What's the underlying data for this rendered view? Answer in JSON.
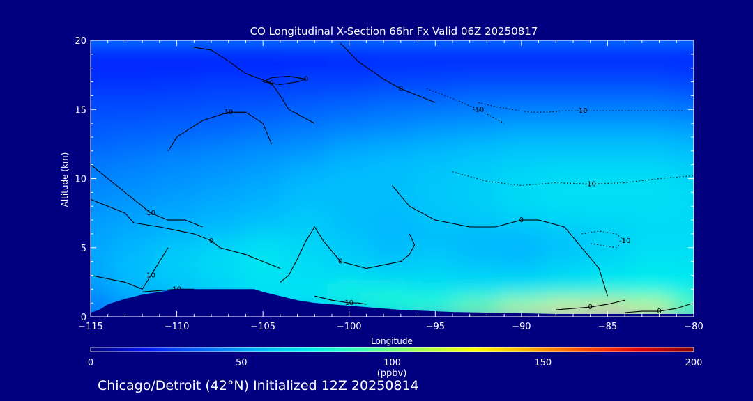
{
  "chart_data": {
    "type": "heatmap",
    "title": "CO Longitudinal X-Section 66hr  Fx Valid 06Z 20250817",
    "xlabel": "Longitude",
    "ylabel": "Altitude (km)",
    "xlim": [
      -115,
      -80
    ],
    "ylim": [
      0,
      20
    ],
    "x_ticks": [
      "−115",
      "−110",
      "−105",
      "−100",
      "−95",
      "−90",
      "−85",
      "−80"
    ],
    "x_tick_values": [
      -115,
      -110,
      -105,
      -100,
      -95,
      -90,
      -85,
      -80
    ],
    "y_ticks": [
      "0",
      "5",
      "10",
      "15",
      "20"
    ],
    "y_tick_values": [
      0,
      5,
      10,
      15,
      20
    ],
    "x": [
      -115,
      -112.5,
      -110,
      -107.5,
      -105,
      -102.5,
      -100,
      -97.5,
      -95,
      -92.5,
      -90,
      -87.5,
      -85,
      -82.5,
      -80
    ],
    "y": [
      0.5,
      1.5,
      2.5,
      3.5,
      4.5,
      5.5,
      6.5,
      7.5,
      8.5,
      9.5,
      10.5,
      11.5,
      12.5,
      13.5,
      14.5,
      15.5,
      16.5,
      17.5,
      18.5,
      19.5
    ],
    "z": [
      [
        40,
        48,
        50,
        52,
        55,
        60,
        65,
        80,
        90,
        105,
        120,
        130,
        135,
        125,
        100
      ],
      [
        45,
        52,
        58,
        62,
        70,
        72,
        80,
        80,
        75,
        75,
        78,
        82,
        85,
        84,
        78
      ],
      [
        50,
        56,
        60,
        64,
        68,
        66,
        70,
        68,
        66,
        65,
        66,
        68,
        70,
        72,
        70
      ],
      [
        52,
        58,
        62,
        66,
        70,
        68,
        64,
        62,
        64,
        62,
        60,
        64,
        68,
        70,
        70
      ],
      [
        52,
        56,
        62,
        66,
        70,
        66,
        62,
        58,
        60,
        56,
        55,
        60,
        64,
        68,
        68
      ],
      [
        50,
        54,
        58,
        62,
        66,
        64,
        60,
        56,
        58,
        56,
        55,
        58,
        62,
        66,
        66
      ],
      [
        50,
        52,
        54,
        56,
        60,
        62,
        58,
        55,
        58,
        58,
        60,
        62,
        64,
        66,
        66
      ],
      [
        48,
        50,
        52,
        54,
        56,
        60,
        58,
        56,
        60,
        62,
        64,
        66,
        66,
        66,
        66
      ],
      [
        46,
        48,
        50,
        52,
        54,
        58,
        58,
        58,
        60,
        62,
        66,
        68,
        68,
        68,
        66
      ],
      [
        44,
        46,
        48,
        50,
        52,
        56,
        58,
        58,
        60,
        62,
        66,
        68,
        68,
        68,
        66
      ],
      [
        42,
        44,
        46,
        48,
        50,
        54,
        56,
        58,
        60,
        62,
        64,
        66,
        66,
        66,
        64
      ],
      [
        40,
        42,
        44,
        46,
        48,
        50,
        54,
        56,
        58,
        60,
        62,
        62,
        62,
        62,
        60
      ],
      [
        36,
        38,
        40,
        42,
        44,
        46,
        50,
        52,
        54,
        56,
        58,
        58,
        58,
        58,
        56
      ],
      [
        34,
        36,
        36,
        38,
        40,
        42,
        44,
        46,
        48,
        50,
        52,
        52,
        52,
        52,
        50
      ],
      [
        32,
        32,
        34,
        34,
        36,
        38,
        40,
        42,
        44,
        44,
        46,
        46,
        46,
        46,
        44
      ],
      [
        30,
        30,
        30,
        32,
        32,
        34,
        36,
        38,
        38,
        40,
        40,
        40,
        40,
        40,
        38
      ],
      [
        26,
        26,
        27,
        28,
        28,
        30,
        30,
        32,
        32,
        34,
        34,
        34,
        34,
        34,
        32
      ],
      [
        24,
        24,
        24,
        25,
        25,
        26,
        26,
        27,
        28,
        28,
        28,
        28,
        28,
        28,
        27
      ],
      [
        22,
        22,
        22,
        22,
        22,
        23,
        23,
        24,
        24,
        24,
        24,
        24,
        24,
        24,
        23
      ],
      [
        21,
        21,
        21,
        21,
        21,
        21,
        22,
        22,
        22,
        22,
        22,
        22,
        22,
        22,
        22
      ]
    ],
    "terrain": {
      "x": [
        -115,
        -114.5,
        -114,
        -113,
        -112,
        -111,
        -110,
        -109,
        -108,
        -107,
        -106,
        -105.5,
        -105,
        -104,
        -103,
        -102,
        -101,
        -100,
        -99,
        -98,
        -97,
        -96,
        -95,
        -94,
        -92,
        -90,
        -88,
        -86,
        -84,
        -82,
        -80
      ],
      "elev_km": [
        0.3,
        0.5,
        0.9,
        1.3,
        1.6,
        1.8,
        2.0,
        2.0,
        2.0,
        2.0,
        2.0,
        2.0,
        1.8,
        1.5,
        1.2,
        1.0,
        0.9,
        0.8,
        0.7,
        0.6,
        0.5,
        0.45,
        0.4,
        0.35,
        0.3,
        0.25,
        0.2,
        0.2,
        0.2,
        0.2,
        0.2
      ]
    },
    "contours": [
      {
        "label": "0",
        "x": [
          -109,
          -108,
          -107,
          -106,
          -104.5,
          -104,
          -103.5,
          -102
        ],
        "y": [
          19.5,
          19.3,
          18.5,
          17.6,
          16.9,
          16.0,
          15.0,
          14.0
        ]
      },
      {
        "label": "0",
        "x": [
          -100.5,
          -99.5,
          -98,
          -97,
          -96,
          -95
        ],
        "y": [
          19.8,
          18.5,
          17.2,
          16.5,
          16.0,
          15.5
        ]
      },
      {
        "label": "0",
        "x": [
          -105,
          -104,
          -103,
          -102.5,
          -103.5,
          -104.5,
          -105
        ],
        "y": [
          17.0,
          16.8,
          17.0,
          17.2,
          17.4,
          17.3,
          17.0
        ]
      },
      {
        "label": "0",
        "x": [
          -115,
          -113,
          -112.5,
          -111,
          -109,
          -108,
          -107.5,
          -106,
          -105,
          -104
        ],
        "y": [
          8.5,
          7.5,
          6.8,
          6.5,
          6.0,
          5.5,
          5.0,
          4.5,
          4.0,
          3.5
        ]
      },
      {
        "label": "0",
        "x": [
          -104,
          -103.5,
          -103,
          -102.5,
          -102,
          -101.5,
          -100.5,
          -99,
          -97,
          -96.5,
          -96.2,
          -96.5
        ],
        "y": [
          2.5,
          3.0,
          4.2,
          5.5,
          6.5,
          5.5,
          4.0,
          3.5,
          4.0,
          4.5,
          5.2,
          6.0
        ]
      },
      {
        "label": "0",
        "x": [
          -97.5,
          -96.5,
          -95,
          -93,
          -91.5,
          -90,
          -89,
          -87.5,
          -86.5,
          -85.5,
          -85
        ],
        "y": [
          9.5,
          8.0,
          7.0,
          6.5,
          6.5,
          7.0,
          7.0,
          6.5,
          5.0,
          3.5,
          1.5
        ]
      },
      {
        "label": "0",
        "x": [
          -88,
          -87,
          -86,
          -85,
          -84
        ],
        "y": [
          0.5,
          0.6,
          0.7,
          0.9,
          1.2
        ]
      },
      {
        "label": "0",
        "x": [
          -84,
          -83,
          -82,
          -81,
          -80
        ],
        "y": [
          0.3,
          0.4,
          0.4,
          0.6,
          1.0
        ]
      },
      {
        "label": "10",
        "x": [
          -115,
          -113,
          -112,
          -111.5,
          -111,
          -110.5
        ],
        "y": [
          3.0,
          2.5,
          2.0,
          3.0,
          4.0,
          5.0
        ]
      },
      {
        "label": "10",
        "x": [
          -110.5,
          -110,
          -108.5,
          -107,
          -106,
          -105,
          -104.5
        ],
        "y": [
          12.0,
          13.0,
          14.2,
          14.8,
          14.8,
          14.0,
          12.5
        ]
      },
      {
        "label": "10",
        "x": [
          -115,
          -113.5,
          -112.5,
          -111.5,
          -110.5,
          -109.5,
          -108.5
        ],
        "y": [
          11.0,
          9.5,
          8.5,
          7.5,
          7.0,
          7.0,
          6.5
        ]
      },
      {
        "label": "10",
        "x": [
          -102,
          -101,
          -100,
          -99.5,
          -99
        ],
        "y": [
          1.5,
          1.2,
          1.0,
          1.0,
          0.9
        ]
      },
      {
        "label": "10",
        "x": [
          -112,
          -111,
          -110,
          -109
        ],
        "y": [
          1.8,
          1.9,
          2.0,
          2.0
        ]
      },
      {
        "label": "-10",
        "x": [
          -92.5,
          -91.5,
          -90.5,
          -89.5,
          -88.5,
          -87.5,
          -86.5,
          -85.5,
          -84.5,
          -83.5,
          -82.5,
          -81.5,
          -80.5
        ],
        "y": [
          15.5,
          15.2,
          15.0,
          14.8,
          14.8,
          14.9,
          14.9,
          14.9,
          14.9,
          14.9,
          14.9,
          14.9,
          14.9
        ]
      },
      {
        "label": "-10",
        "x": [
          -94,
          -92,
          -90,
          -88,
          -86,
          -84,
          -82,
          -80
        ],
        "y": [
          10.5,
          9.8,
          9.5,
          9.7,
          9.6,
          9.7,
          10.0,
          10.2
        ]
      },
      {
        "label": "-10",
        "x": [
          -95.5,
          -94,
          -92.5,
          -91
        ],
        "y": [
          16.5,
          15.8,
          15.0,
          14.0
        ]
      },
      {
        "label": "-10",
        "x": [
          -86.5,
          -85.5,
          -84.5,
          -84,
          -84.5,
          -86
        ],
        "y": [
          6.0,
          6.2,
          6.0,
          5.5,
          5.0,
          5.3
        ]
      }
    ],
    "colorbar": {
      "range": [
        0,
        200
      ],
      "ticks": [
        "0",
        "50",
        "100",
        "150",
        "200"
      ],
      "tick_values": [
        0,
        50,
        100,
        150,
        200
      ],
      "units": "(ppbv)",
      "colors": [
        "#00007a",
        "#0014ff",
        "#0064ff",
        "#00b4ff",
        "#00f0f0",
        "#40ffb0",
        "#a0ff50",
        "#ffff00",
        "#ffb000",
        "#ff5000",
        "#e00000",
        "#800000"
      ]
    },
    "footer": "Chicago/Detroit (42°N) Initialized 12Z 20250814",
    "grid": false,
    "background": "#000080"
  }
}
